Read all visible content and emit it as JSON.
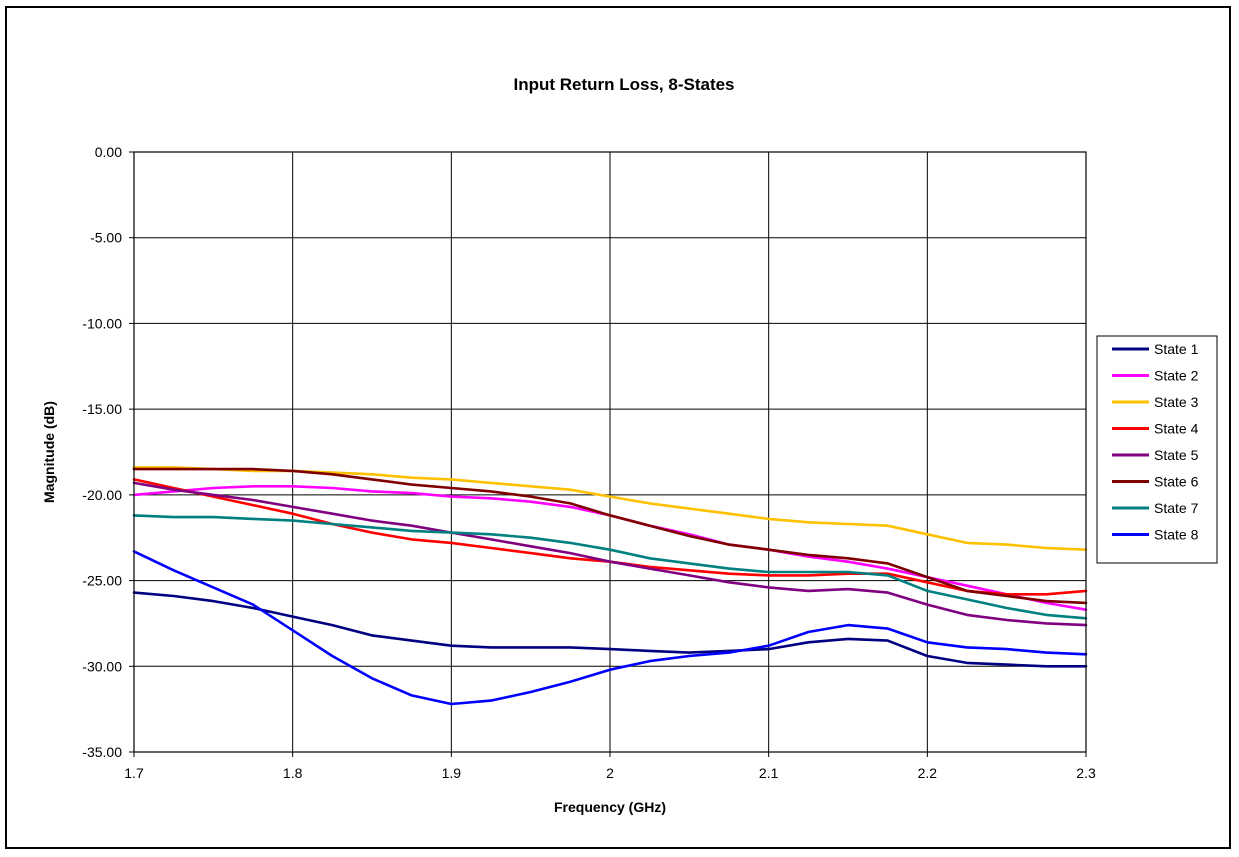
{
  "chart_data": {
    "type": "line",
    "title": "Input  Return Loss, 8-States",
    "xlabel": "Frequency (GHz)",
    "ylabel": "Magnitude (dB)",
    "xlim": [
      1.7,
      2.3
    ],
    "ylim": [
      -35,
      0
    ],
    "x_ticks": [
      1.7,
      1.8,
      1.9,
      2,
      2.1,
      2.2,
      2.3
    ],
    "x_tick_labels": [
      "1.7",
      "1.8",
      "1.9",
      "2",
      "2.1",
      "2.2",
      "2.3"
    ],
    "y_ticks": [
      0,
      -5,
      -10,
      -15,
      -20,
      -25,
      -30,
      -35
    ],
    "y_tick_labels": [
      "0.00",
      "-5.00",
      "-10.00",
      "-15.00",
      "-20.00",
      "-25.00",
      "-30.00",
      "-35.00"
    ],
    "grid": true,
    "legend_position": "right",
    "x": [
      1.7,
      1.725,
      1.75,
      1.775,
      1.8,
      1.825,
      1.85,
      1.875,
      1.9,
      1.925,
      1.95,
      1.975,
      2.0,
      2.025,
      2.05,
      2.075,
      2.1,
      2.125,
      2.15,
      2.175,
      2.2,
      2.225,
      2.25,
      2.275,
      2.3
    ],
    "series": [
      {
        "name": "State 1",
        "color": "#000080",
        "values": [
          -25.7,
          -25.9,
          -26.2,
          -26.6,
          -27.1,
          -27.6,
          -28.2,
          -28.5,
          -28.8,
          -28.9,
          -28.9,
          -28.9,
          -29.0,
          -29.1,
          -29.2,
          -29.1,
          -29.0,
          -28.6,
          -28.4,
          -28.5,
          -29.4,
          -29.8,
          -29.9,
          -30.0,
          -30.0
        ]
      },
      {
        "name": "State 2",
        "color": "#ff00ff",
        "values": [
          -20.0,
          -19.8,
          -19.6,
          -19.5,
          -19.5,
          -19.6,
          -19.8,
          -19.9,
          -20.1,
          -20.2,
          -20.4,
          -20.7,
          -21.2,
          -21.8,
          -22.3,
          -22.9,
          -23.2,
          -23.6,
          -23.9,
          -24.3,
          -24.8,
          -25.3,
          -25.8,
          -26.3,
          -26.7
        ]
      },
      {
        "name": "State 3",
        "color": "#ffc000",
        "values": [
          -18.4,
          -18.4,
          -18.5,
          -18.6,
          -18.6,
          -18.7,
          -18.8,
          -19.0,
          -19.1,
          -19.3,
          -19.5,
          -19.7,
          -20.1,
          -20.5,
          -20.8,
          -21.1,
          -21.4,
          -21.6,
          -21.7,
          -21.8,
          -22.3,
          -22.8,
          -22.9,
          -23.1,
          -23.2
        ]
      },
      {
        "name": "State 4",
        "color": "#ff0000",
        "values": [
          -19.1,
          -19.6,
          -20.1,
          -20.6,
          -21.1,
          -21.7,
          -22.2,
          -22.6,
          -22.8,
          -23.1,
          -23.4,
          -23.7,
          -23.9,
          -24.2,
          -24.4,
          -24.6,
          -24.7,
          -24.7,
          -24.6,
          -24.6,
          -25.1,
          -25.6,
          -25.8,
          -25.8,
          -25.6
        ]
      },
      {
        "name": "State 5",
        "color": "#800080",
        "values": [
          -19.3,
          -19.7,
          -20.0,
          -20.3,
          -20.7,
          -21.1,
          -21.5,
          -21.8,
          -22.2,
          -22.6,
          -23.0,
          -23.4,
          -23.9,
          -24.3,
          -24.7,
          -25.1,
          -25.4,
          -25.6,
          -25.5,
          -25.7,
          -26.4,
          -27.0,
          -27.3,
          -27.5,
          -27.6
        ]
      },
      {
        "name": "State 6",
        "color": "#800000",
        "values": [
          -18.5,
          -18.5,
          -18.5,
          -18.5,
          -18.6,
          -18.8,
          -19.1,
          -19.4,
          -19.6,
          -19.8,
          -20.1,
          -20.5,
          -21.2,
          -21.8,
          -22.4,
          -22.9,
          -23.2,
          -23.5,
          -23.7,
          -24.0,
          -24.8,
          -25.6,
          -25.9,
          -26.2,
          -26.3
        ]
      },
      {
        "name": "State 7",
        "color": "#008080",
        "values": [
          -21.2,
          -21.3,
          -21.3,
          -21.4,
          -21.5,
          -21.7,
          -21.9,
          -22.1,
          -22.2,
          -22.3,
          -22.5,
          -22.8,
          -23.2,
          -23.7,
          -24.0,
          -24.3,
          -24.5,
          -24.5,
          -24.5,
          -24.7,
          -25.6,
          -26.1,
          -26.6,
          -27.0,
          -27.2
        ]
      },
      {
        "name": "State 8",
        "color": "#0000ff",
        "values": [
          -23.3,
          -24.4,
          -25.4,
          -26.4,
          -27.9,
          -29.4,
          -30.7,
          -31.7,
          -32.2,
          -32.0,
          -31.5,
          -30.9,
          -30.2,
          -29.7,
          -29.4,
          -29.2,
          -28.8,
          -28.0,
          -27.6,
          -27.8,
          -28.6,
          -28.9,
          -29.0,
          -29.2,
          -29.3
        ]
      }
    ]
  }
}
